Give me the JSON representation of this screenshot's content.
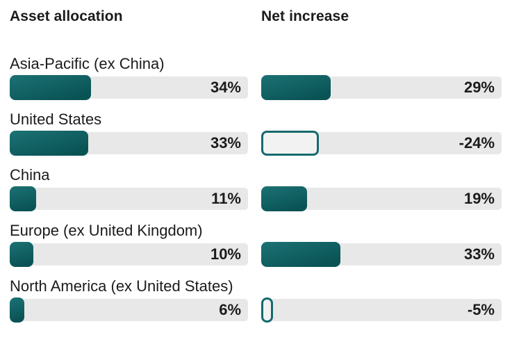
{
  "chart_data": {
    "type": "bar",
    "orientation": "horizontal",
    "columns": [
      {
        "label": "Asset allocation"
      },
      {
        "label": "Net increase"
      }
    ],
    "categories": [
      "Asia-Pacific (ex China)",
      "United States",
      "China",
      "Europe (ex United Kingdom)",
      "North America (ex United States)"
    ],
    "series": [
      {
        "name": "Asset allocation",
        "unit": "%",
        "values": [
          34,
          33,
          11,
          10,
          6
        ]
      },
      {
        "name": "Net increase",
        "unit": "%",
        "values": [
          29,
          -24,
          19,
          33,
          -5
        ]
      }
    ],
    "xlim": [
      0,
      100
    ],
    "grid": false,
    "legend": "none",
    "value_labels_shown": true,
    "negative_style": "outlined-bar"
  },
  "rows": [
    {
      "label": "Asia-Pacific (ex China)",
      "allocation_display": "34%",
      "net_display": "29%"
    },
    {
      "label": "United States",
      "allocation_display": "33%",
      "net_display": "-24%"
    },
    {
      "label": "China",
      "allocation_display": "11%",
      "net_display": "19%"
    },
    {
      "label": "Europe (ex United Kingdom)",
      "allocation_display": "10%",
      "net_display": "33%"
    },
    {
      "label": "North America (ex United States)",
      "allocation_display": "6%",
      "net_display": "-5%"
    }
  ],
  "colors": {
    "bar_fill_gradient_top": "#1b7274",
    "bar_fill_gradient_bottom": "#0a5355",
    "bar_track": "#e8e8e8",
    "negative_bar_fill": "#f2f2f2",
    "negative_bar_border": "#156a6d",
    "text": "#1b1b1b",
    "background": "#ffffff"
  }
}
